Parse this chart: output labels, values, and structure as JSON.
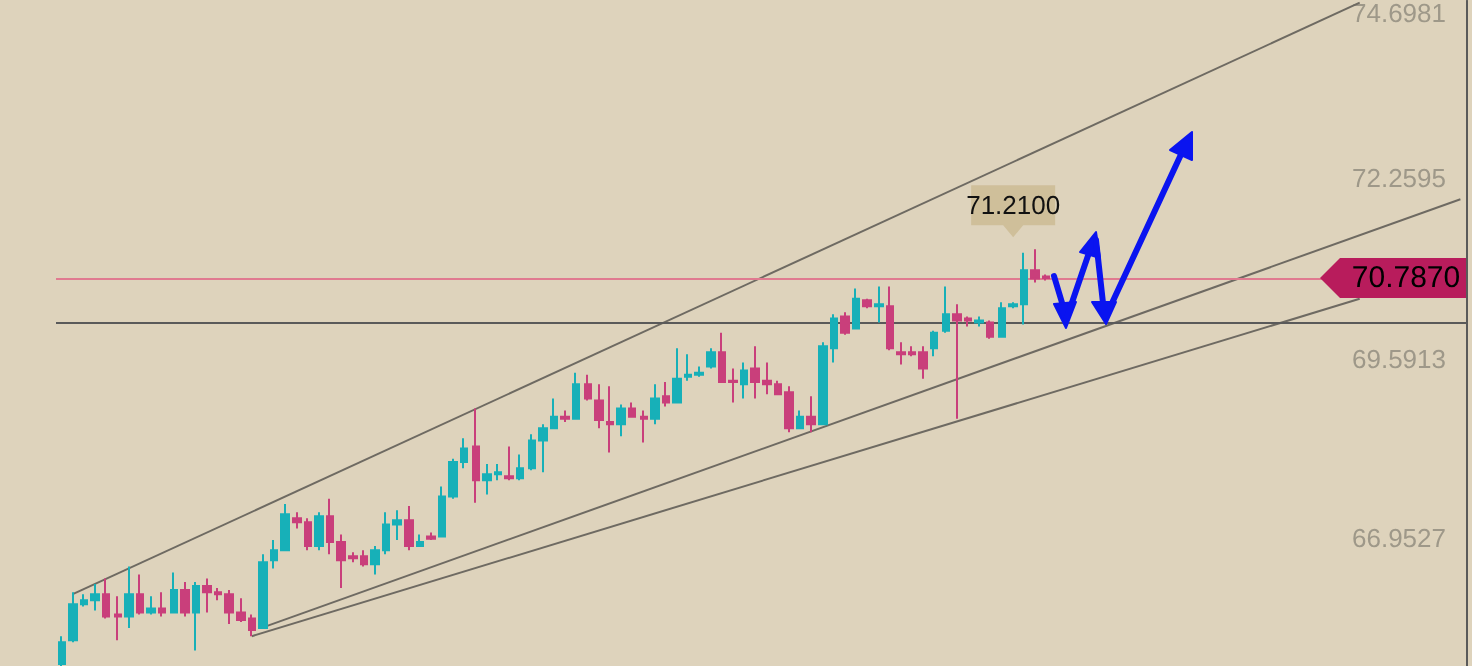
{
  "chart_data": {
    "type": "candlestick",
    "colors": [
      "#17b0b8",
      "#17b0b8",
      "#17b0b8",
      "#17b0b8",
      "#c93f7b",
      "#c93f7b",
      "#17b0b8",
      "#c93f7b",
      "#17b0b8",
      "#c93f7b",
      "#17b0b8",
      "#c93f7b",
      "#17b0b8",
      "#c93f7b",
      "#c93f7b",
      "#c93f7b",
      "#c93f7b",
      "#c93f7b",
      "#17b0b8",
      "#17b0b8",
      "#17b0b8",
      "#c93f7b",
      "#c93f7b",
      "#17b0b8",
      "#c93f7b",
      "#c93f7b",
      "#c93f7b",
      "#c93f7b",
      "#17b0b8",
      "#17b0b8",
      "#17b0b8",
      "#c93f7b",
      "#17b0b8",
      "#c93f7b",
      "#17b0b8",
      "#17b0b8",
      "#17b0b8",
      "#c93f7b",
      "#17b0b8",
      "#17b0b8",
      "#c93f7b",
      "#17b0b8",
      "#17b0b8",
      "#17b0b8",
      "#17b0b8",
      "#c93f7b",
      "#17b0b8",
      "#c93f7b",
      "#c93f7b",
      "#c93f7b",
      "#17b0b8",
      "#c93f7b",
      "#c93f7b",
      "#17b0b8",
      "#c93f7b",
      "#17b0b8",
      "#17b0b8",
      "#17b0b8",
      "#17b0b8",
      "#c93f7b",
      "#c93f7b",
      "#17b0b8",
      "#c93f7b",
      "#c93f7b",
      "#c93f7b",
      "#c93f7b",
      "#17b0b8",
      "#c93f7b",
      "#17b0b8",
      "#17b0b8",
      "#c93f7b",
      "#17b0b8",
      "#c93f7b",
      "#17b0b8",
      "#c93f7b",
      "#c93f7b",
      "#c93f7b",
      "#c93f7b",
      "#17b0b8",
      "#17b0b8",
      "#c93f7b",
      "#c93f7b",
      "#17b0b8",
      "#c93f7b",
      "#17b0b8",
      "#17b0b8",
      "#17b0b8",
      "#c93f7b",
      "#c93f7b",
      null,
      null,
      null,
      null,
      null,
      null,
      null,
      null,
      null,
      null,
      null,
      null,
      null,
      null,
      null,
      null,
      null,
      null,
      null,
      null,
      null,
      null,
      null,
      null,
      null,
      null,
      null,
      null,
      null,
      null,
      null,
      null,
      null,
      null,
      null,
      null,
      null
    ],
    "categories": [
      null,
      null,
      null,
      null,
      null,
      null,
      null,
      null,
      null,
      null,
      null,
      null,
      null,
      null,
      null,
      null,
      null,
      null,
      null,
      null,
      null,
      null,
      null,
      null,
      null,
      null,
      null,
      null,
      null,
      null,
      null,
      null,
      null,
      null,
      null,
      null,
      null,
      null,
      null,
      null,
      null,
      null,
      null,
      null,
      null,
      null,
      null,
      null,
      null,
      null,
      null,
      null,
      null,
      null,
      null,
      null,
      null,
      null,
      null,
      null,
      null,
      null,
      null,
      null,
      null,
      null,
      null,
      null,
      null,
      null,
      null,
      null,
      null,
      null,
      null,
      null,
      null,
      null,
      null,
      null,
      null,
      null,
      null,
      null,
      null,
      null,
      null,
      null,
      null,
      null,
      null,
      null,
      null,
      null,
      null,
      null,
      null,
      null,
      null,
      null,
      null,
      null,
      null,
      null,
      null,
      null,
      null,
      null,
      null,
      null,
      null,
      null,
      null,
      null,
      null,
      null,
      null,
      null,
      null,
      null,
      null,
      null,
      null,
      null,
      null,
      null
    ],
    "ohlc": [
      [
        65.09,
        65.5,
        65.06,
        65.41
      ],
      [
        65.44,
        66.15,
        65.41,
        65.97
      ],
      [
        65.97,
        66.12,
        65.94,
        66.03
      ],
      [
        66.03,
        66.27,
        65.88,
        66.12
      ],
      [
        66.12,
        66.35,
        65.76,
        65.79
      ],
      [
        65.82,
        66.09,
        65.44,
        65.79
      ],
      [
        65.79,
        66.53,
        65.62,
        66.12
      ],
      [
        66.12,
        66.41,
        65.82,
        65.85
      ],
      [
        65.85,
        66.09,
        65.82,
        65.91
      ],
      [
        65.91,
        66.15,
        65.79,
        65.85
      ],
      [
        65.85,
        66.44,
        65.85,
        66.18
      ],
      [
        66.18,
        66.3,
        65.79,
        65.85
      ],
      [
        65.85,
        66.3,
        65.29,
        66.24
      ],
      [
        66.24,
        66.35,
        65.85,
        66.15
      ],
      [
        66.15,
        66.21,
        66.03,
        66.12
      ],
      [
        66.12,
        66.18,
        65.68,
        65.85
      ],
      [
        65.85,
        66.06,
        65.71,
        65.74
      ],
      [
        65.76,
        65.82,
        65.5,
        65.59
      ],
      [
        65.62,
        66.71,
        65.62,
        66.59
      ],
      [
        66.62,
        66.92,
        66.5,
        66.77
      ],
      [
        66.77,
        67.45,
        66.77,
        67.3
      ],
      [
        67.24,
        67.33,
        67.09,
        67.18
      ],
      [
        67.18,
        67.24,
        66.77,
        66.83
      ],
      [
        66.83,
        67.33,
        66.77,
        67.27
      ],
      [
        67.27,
        67.53,
        66.71,
        66.89
      ],
      [
        66.89,
        67.0,
        66.21,
        66.62
      ],
      [
        66.68,
        66.74,
        66.59,
        66.65
      ],
      [
        66.68,
        66.77,
        66.53,
        66.56
      ],
      [
        66.56,
        66.83,
        66.41,
        66.77
      ],
      [
        66.77,
        67.33,
        66.71,
        67.15
      ],
      [
        67.15,
        67.36,
        66.92,
        67.21
      ],
      [
        67.21,
        67.42,
        66.77,
        66.83
      ],
      [
        66.83,
        67.0,
        66.83,
        66.89
      ],
      [
        66.97,
        67.03,
        66.92,
        66.94
      ],
      [
        66.97,
        67.71,
        66.97,
        67.56
      ],
      [
        67.56,
        68.12,
        67.53,
        68.07
      ],
      [
        68.07,
        68.42,
        67.98,
        68.27
      ],
      [
        68.3,
        68.86,
        67.47,
        67.8
      ],
      [
        67.8,
        68.04,
        67.59,
        67.89
      ],
      [
        67.89,
        68.04,
        67.8,
        67.92
      ],
      [
        67.86,
        68.3,
        67.8,
        67.83
      ],
      [
        67.83,
        68.18,
        67.8,
        67.98
      ],
      [
        67.98,
        68.48,
        67.95,
        68.39
      ],
      [
        68.39,
        68.63,
        67.92,
        68.57
      ],
      [
        68.57,
        69.01,
        68.57,
        68.74
      ],
      [
        68.74,
        68.83,
        68.66,
        68.71
      ],
      [
        68.71,
        69.39,
        68.71,
        69.22
      ],
      [
        69.22,
        69.36,
        68.98,
        69.01
      ],
      [
        68.98,
        69.22,
        68.57,
        68.69
      ],
      [
        68.66,
        69.19,
        68.21,
        68.63
      ],
      [
        68.63,
        68.92,
        68.45,
        68.86
      ],
      [
        68.86,
        68.95,
        68.74,
        68.74
      ],
      [
        68.74,
        68.83,
        68.36,
        68.71
      ],
      [
        68.71,
        69.22,
        68.63,
        69.01
      ],
      [
        69.04,
        69.25,
        68.89,
        68.95
      ],
      [
        68.95,
        69.75,
        68.95,
        69.3
      ],
      [
        69.33,
        69.66,
        69.27,
        69.36
      ],
      [
        69.36,
        69.48,
        69.33,
        69.39
      ],
      [
        69.48,
        69.75,
        69.45,
        69.69
      ],
      [
        69.69,
        69.98,
        69.25,
        69.25
      ],
      [
        69.27,
        69.45,
        68.95,
        69.25
      ],
      [
        69.22,
        69.54,
        69.01,
        69.42
      ],
      [
        69.45,
        69.78,
        69.01,
        69.25
      ],
      [
        69.27,
        69.54,
        69.07,
        69.22
      ],
      [
        69.22,
        69.27,
        69.07,
        69.07
      ],
      [
        69.1,
        69.19,
        68.51,
        68.57
      ],
      [
        68.57,
        68.83,
        68.57,
        68.74
      ],
      [
        68.74,
        69.04,
        68.51,
        68.63
      ],
      [
        68.63,
        69.84,
        68.63,
        69.78
      ],
      [
        69.75,
        70.25,
        69.54,
        70.19
      ],
      [
        70.22,
        70.28,
        69.95,
        69.98
      ],
      [
        70.04,
        70.63,
        70.04,
        70.48
      ],
      [
        70.46,
        70.48,
        70.34,
        70.37
      ],
      [
        70.37,
        70.66,
        70.13,
        70.4
      ],
      [
        70.37,
        70.66,
        69.72,
        69.75
      ],
      [
        69.69,
        69.84,
        69.51,
        69.66
      ],
      [
        69.69,
        69.78,
        69.63,
        69.66
      ],
      [
        69.69,
        69.78,
        69.3,
        69.45
      ],
      [
        69.75,
        70.01,
        69.63,
        69.98
      ],
      [
        70.01,
        70.66,
        69.98,
        70.25
      ],
      [
        70.25,
        70.4,
        68.71,
        70.16
      ],
      [
        70.19,
        70.22,
        70.07,
        70.16
      ],
      [
        70.13,
        70.22,
        70.07,
        70.16
      ],
      [
        70.13,
        70.16,
        69.89,
        69.92
      ],
      [
        69.92,
        70.43,
        69.92,
        70.34
      ],
      [
        70.37,
        70.43,
        70.34,
        70.4
      ],
      [
        70.4,
        71.16,
        70.1,
        70.9
      ],
      [
        70.9,
        71.21,
        70.72,
        70.78
      ],
      [
        70.81,
        70.84,
        70.75,
        70.787
      ],
      null,
      null,
      null,
      null,
      null,
      null,
      null,
      null,
      null,
      null,
      null,
      null,
      null,
      null,
      null,
      null,
      null,
      null,
      null,
      null,
      null,
      null,
      null,
      null,
      null,
      null,
      null,
      null,
      null,
      null,
      null,
      null,
      null,
      null,
      null,
      null,
      null
    ],
    "series": [
      {
        "type": "line",
        "color": "#6e6a62",
        "values": [
          null,
          66.12,
          null,
          null,
          null,
          null,
          null,
          null,
          null,
          null,
          null,
          null,
          null,
          null,
          null,
          null,
          null,
          null,
          null,
          null,
          null,
          null,
          null,
          null,
          null,
          null,
          null,
          null,
          null,
          null,
          null,
          null,
          null,
          null,
          null,
          null,
          null,
          null,
          null,
          null,
          null,
          null,
          null,
          null,
          null,
          null,
          null,
          null,
          null,
          null,
          null,
          null,
          null,
          null,
          null,
          null,
          null,
          null,
          null,
          null,
          null,
          null,
          null,
          null,
          null,
          null,
          null,
          null,
          null,
          null,
          null,
          null,
          null,
          null,
          null,
          null,
          null,
          null,
          null,
          null,
          null,
          null,
          null,
          null,
          null,
          null,
          null,
          null,
          null,
          null,
          null,
          null,
          null,
          null,
          null,
          null,
          null,
          null,
          null,
          null,
          null,
          null,
          null,
          null,
          null,
          null,
          null,
          null,
          null,
          null,
          null,
          null,
          null,
          null,
          null,
          null,
          74.85,
          null,
          null,
          null,
          null,
          null,
          null,
          null,
          null,
          null
        ]
      },
      {
        "type": "line",
        "color": "#6e6a62",
        "values": [
          null,
          null,
          null,
          null,
          null,
          null,
          null,
          null,
          null,
          null,
          null,
          null,
          null,
          null,
          null,
          null,
          null,
          null,
          65.63,
          null,
          null,
          null,
          null,
          null,
          null,
          null,
          null,
          null,
          null,
          null,
          null,
          null,
          null,
          null,
          null,
          null,
          null,
          null,
          null,
          null,
          null,
          null,
          null,
          null,
          null,
          null,
          null,
          null,
          null,
          null,
          null,
          null,
          null,
          null,
          null,
          null,
          null,
          null,
          null,
          null,
          null,
          null,
          null,
          null,
          null,
          null,
          null,
          null,
          null,
          null,
          null,
          null,
          null,
          null,
          null,
          null,
          null,
          null,
          null,
          null,
          null,
          null,
          null,
          null,
          null,
          null,
          null,
          null,
          null,
          null,
          null,
          null,
          null,
          null,
          null,
          null,
          null,
          null,
          null,
          null,
          null,
          null,
          null,
          null,
          null,
          null,
          null,
          null,
          null,
          null,
          null,
          null,
          null,
          null,
          null,
          null,
          null,
          null,
          null,
          null,
          null,
          null,
          null,
          null,
          null,
          71.95
        ]
      },
      {
        "type": "line",
        "color": "#6e6a62",
        "values": [
          null,
          null,
          null,
          null,
          null,
          null,
          null,
          null,
          null,
          null,
          null,
          null,
          null,
          null,
          null,
          null,
          null,
          65.5,
          null,
          null,
          null,
          null,
          null,
          null,
          null,
          null,
          null,
          null,
          null,
          null,
          null,
          null,
          null,
          null,
          null,
          null,
          null,
          null,
          null,
          null,
          null,
          null,
          null,
          null,
          null,
          null,
          null,
          null,
          null,
          null,
          null,
          null,
          null,
          null,
          null,
          null,
          null,
          null,
          null,
          null,
          null,
          null,
          null,
          null,
          null,
          null,
          null,
          null,
          null,
          null,
          null,
          null,
          null,
          null,
          null,
          null,
          null,
          null,
          null,
          null,
          null,
          null,
          null,
          null,
          null,
          null,
          null,
          null,
          null,
          null,
          null,
          null,
          null,
          null,
          null,
          null,
          null,
          null,
          null,
          null,
          null,
          null,
          null,
          null,
          null,
          null,
          null,
          null,
          null,
          null,
          null,
          null,
          null,
          null,
          null,
          null,
          70.48,
          null,
          null,
          null,
          null,
          null,
          null,
          null,
          null,
          null
        ]
      }
    ],
    "ylim": [
      65.06,
      74.88
    ],
    "yticks": [
      66.9527,
      69.5913,
      72.2595,
      74.6981
    ],
    "tick_labels": "y",
    "ref_lines": [
      {
        "axis": "y",
        "value": 70.787,
        "label": "70.7870",
        "color": "#e07a90"
      },
      {
        "axis": "y",
        "value": 70.13,
        "color": "#5a5a5a"
      }
    ],
    "annotations": [
      "71.2100"
    ]
  }
}
